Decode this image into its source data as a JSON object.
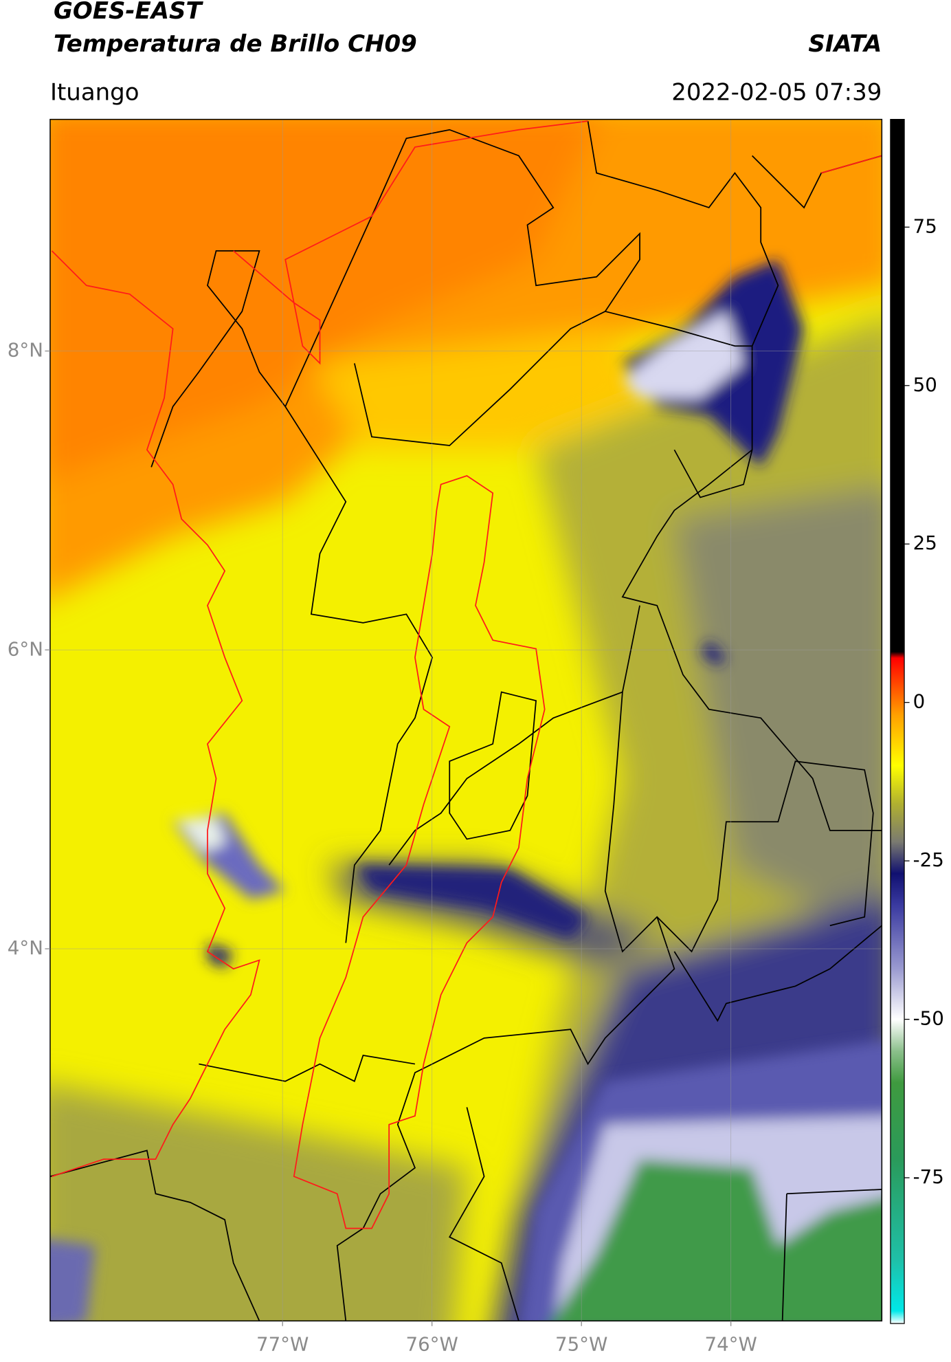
{
  "header": {
    "title": "GOES-EAST",
    "subtitle": "Temperatura de Brillo CH09",
    "brand": "SIATA",
    "location": "Ituango",
    "datetime": "2022-02-05 07:39"
  },
  "map": {
    "xlim": [
      -78.555,
      -72.99
    ],
    "ylim": [
      1.51,
      9.55
    ],
    "yticks": [
      {
        "value": 8,
        "label": "8°N"
      },
      {
        "value": 6,
        "label": "6°N"
      },
      {
        "value": 4,
        "label": "4°N"
      }
    ],
    "xticks": [
      {
        "value": -77,
        "label": "77°W"
      },
      {
        "value": -76,
        "label": "76°W"
      },
      {
        "value": -75,
        "label": "75°W"
      },
      {
        "value": -74,
        "label": "74°W"
      }
    ],
    "grid": true
  },
  "colorbar": {
    "lim": [
      -98,
      92
    ],
    "ticks": [
      75,
      50,
      25,
      0,
      -25,
      -50,
      -75
    ],
    "stops": [
      {
        "value": -98,
        "color": "#ffffff"
      },
      {
        "value": -96,
        "color": "#00e8e8"
      },
      {
        "value": -88,
        "color": "#1fc0a8"
      },
      {
        "value": -72,
        "color": "#2a9a5a"
      },
      {
        "value": -60,
        "color": "#3f9a3f"
      },
      {
        "value": -55,
        "color": "#8cc08c"
      },
      {
        "value": -50,
        "color": "#ffffff"
      },
      {
        "value": -42,
        "color": "#9a9ad0"
      },
      {
        "value": -32,
        "color": "#3a3aa0"
      },
      {
        "value": -27,
        "color": "#101070"
      },
      {
        "value": -22,
        "color": "#7a7a70"
      },
      {
        "value": -16,
        "color": "#b0b030"
      },
      {
        "value": -10,
        "color": "#ffff00"
      },
      {
        "value": -2,
        "color": "#ffa000"
      },
      {
        "value": 7,
        "color": "#ff0000"
      },
      {
        "value": 8,
        "color": "#000000"
      },
      {
        "value": 92,
        "color": "#000000"
      }
    ]
  }
}
